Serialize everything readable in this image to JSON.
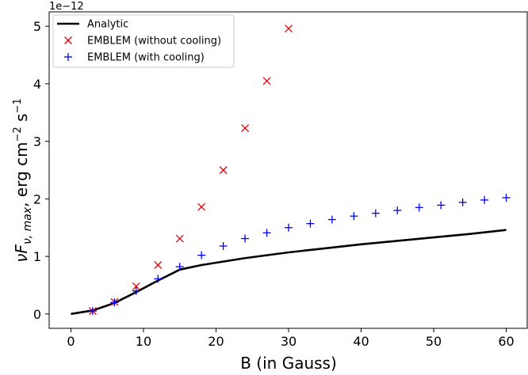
{
  "chart_data": {
    "type": "scatter",
    "title": "",
    "xlabel": "B (in Gauss)",
    "ylabel_main": "νF",
    "ylabel_sub": "ν, max",
    "ylabel_unit": ", erg cm",
    "ylabel_exp1": "−2",
    "ylabel_s": " s",
    "ylabel_exp2": "−1",
    "y_offset_label": "1e−12",
    "xlim": [
      -3,
      63
    ],
    "ylim": [
      -0.25,
      5.25
    ],
    "x_ticks": [
      0,
      10,
      20,
      30,
      40,
      50,
      60
    ],
    "y_ticks": [
      0,
      1,
      2,
      3,
      4,
      5
    ],
    "legend_position": "top-left",
    "grid": false,
    "series": [
      {
        "name": "Analytic",
        "kind": "line",
        "color": "#000000",
        "x": [
          0,
          3,
          6,
          9,
          12,
          15,
          18,
          21,
          24,
          27,
          30,
          35,
          40,
          45,
          50,
          55,
          60
        ],
        "y": [
          0,
          0.06,
          0.19,
          0.38,
          0.58,
          0.77,
          0.85,
          0.91,
          0.97,
          1.02,
          1.07,
          1.14,
          1.21,
          1.27,
          1.33,
          1.39,
          1.46
        ]
      },
      {
        "name": "EMBLEM (without cooling)",
        "kind": "x-marker",
        "color": "#e8000b",
        "x": [
          3,
          6,
          9,
          12,
          15,
          18,
          21,
          24,
          27,
          30
        ],
        "y": [
          0.05,
          0.21,
          0.48,
          0.85,
          1.31,
          1.86,
          2.5,
          3.23,
          4.05,
          4.96
        ]
      },
      {
        "name": "EMBLEM (with cooling)",
        "kind": "plus-marker",
        "color": "#0000ff",
        "x": [
          3,
          6,
          9,
          12,
          15,
          18,
          21,
          24,
          27,
          30,
          33,
          36,
          39,
          42,
          45,
          48,
          51,
          54,
          57,
          60
        ],
        "y": [
          0.05,
          0.2,
          0.4,
          0.61,
          0.82,
          1.02,
          1.18,
          1.31,
          1.41,
          1.5,
          1.57,
          1.64,
          1.7,
          1.75,
          1.8,
          1.85,
          1.89,
          1.94,
          1.98,
          2.02
        ]
      }
    ]
  }
}
